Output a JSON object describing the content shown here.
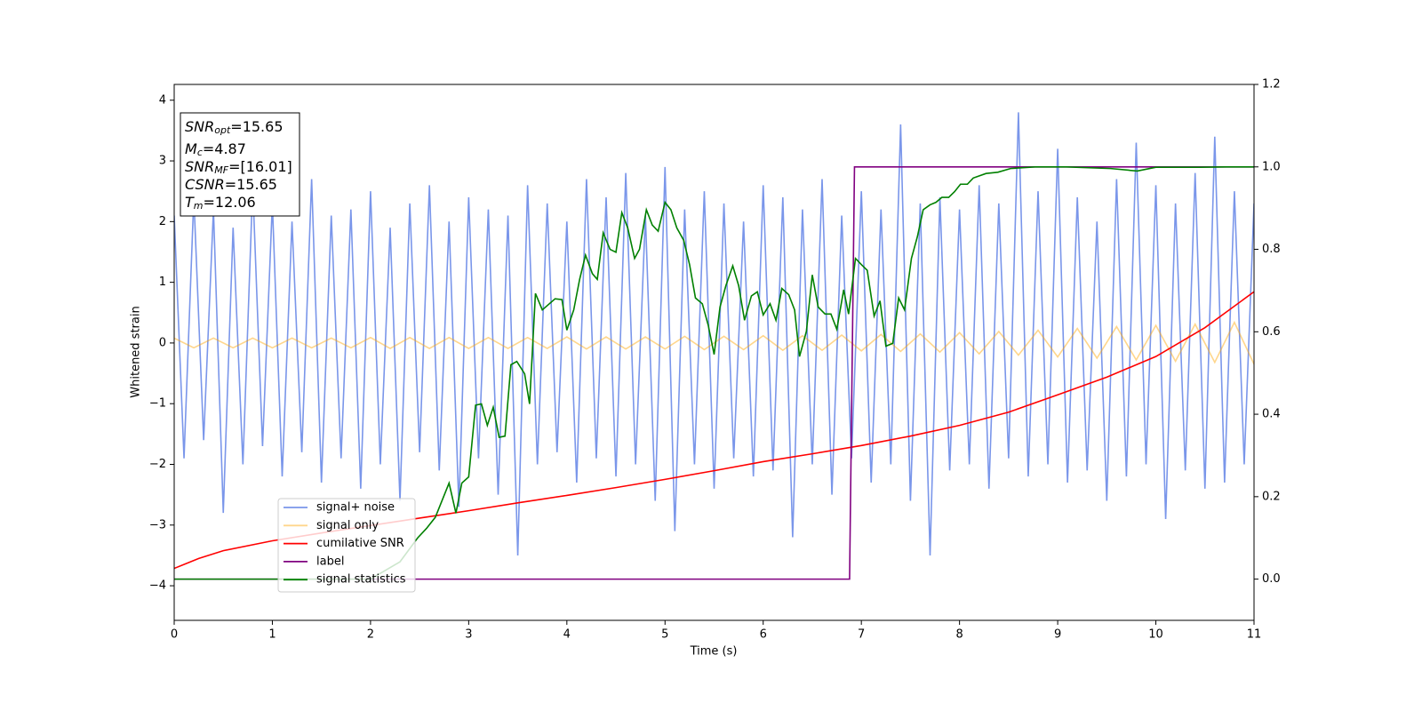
{
  "chart_data": {
    "type": "line",
    "xlabel": "Time (s)",
    "ylabel": "Whitened strain",
    "xlim": [
      0,
      11
    ],
    "ylim": [
      -4.57,
      4.26
    ],
    "y2lim": [
      -0.1,
      1.2
    ],
    "xticks": [
      0,
      1,
      2,
      3,
      4,
      5,
      6,
      7,
      8,
      9,
      10,
      11
    ],
    "yticks": [
      {
        "value": -4,
        "label": "−4"
      },
      {
        "value": -3,
        "label": "−3"
      },
      {
        "value": -2,
        "label": "−2"
      },
      {
        "value": -1,
        "label": "−1"
      },
      0,
      1,
      2,
      3,
      4
    ],
    "y2ticks": [
      {
        "value": 0,
        "label": "0.0"
      },
      0.2,
      0.4,
      0.6,
      0.8,
      {
        "value": 1,
        "label": "1.0"
      },
      1.2
    ],
    "legend": "lower left",
    "annotation_box": [
      {
        "text": "SNR",
        "sub": "opt",
        "rest": "=15.65"
      },
      {
        "text": "M",
        "sub": "c",
        "rest": "=4.87"
      },
      {
        "text": "SNR",
        "sub": "MF",
        "rest": "=[16.01]"
      },
      {
        "text": "CSNR",
        "rest": "=15.65"
      },
      {
        "text": "T",
        "sub": "m",
        "rest": "=12.06"
      }
    ],
    "series": [
      {
        "name": "signal+ noise",
        "color": "#4169e1",
        "opacity": 0.7,
        "axis": "y",
        "x": [
          0,
          0.1,
          0.2,
          0.3,
          0.4,
          0.5,
          0.6,
          0.7,
          0.8,
          0.9,
          1,
          1.1,
          1.2,
          1.3,
          1.4,
          1.5,
          1.6,
          1.7,
          1.8,
          1.9,
          2,
          2.1,
          2.2,
          2.3,
          2.4,
          2.5,
          2.6,
          2.7,
          2.8,
          2.9,
          3,
          3.1,
          3.2,
          3.3,
          3.4,
          3.5,
          3.6,
          3.7,
          3.8,
          3.9,
          4,
          4.1,
          4.2,
          4.3,
          4.4,
          4.5,
          4.6,
          4.7,
          4.8,
          4.9,
          5,
          5.1,
          5.2,
          5.3,
          5.4,
          5.5,
          5.6,
          5.7,
          5.8,
          5.9,
          6,
          6.1,
          6.2,
          6.3,
          6.4,
          6.5,
          6.6,
          6.7,
          6.8,
          6.9,
          7,
          7.1,
          7.2,
          7.3,
          7.4,
          7.5,
          7.6,
          7.7,
          7.8,
          7.9,
          8,
          8.1,
          8.2,
          8.3,
          8.4,
          8.5,
          8.6,
          8.7,
          8.8,
          8.9,
          9,
          9.1,
          9.2,
          9.3,
          9.4,
          9.5,
          9.6,
          9.7,
          9.8,
          9.9,
          10,
          10.1,
          10.2,
          10.3,
          10.4,
          10.5,
          10.6,
          10.7,
          10.8,
          10.9,
          11
        ],
        "values": [
          2.1,
          -1.9,
          2.4,
          -1.6,
          2.2,
          -2.8,
          1.9,
          -2.0,
          2.6,
          -1.7,
          2.3,
          -2.2,
          2.0,
          -1.8,
          2.7,
          -2.3,
          2.1,
          -1.9,
          2.2,
          -2.4,
          2.5,
          -2.0,
          1.9,
          -2.6,
          2.3,
          -1.8,
          2.6,
          -2.1,
          2.0,
          -2.7,
          2.4,
          -1.9,
          2.2,
          -2.5,
          2.1,
          -3.5,
          2.6,
          -2.0,
          2.3,
          -1.8,
          2.0,
          -2.3,
          2.7,
          -1.9,
          2.4,
          -2.2,
          2.8,
          -2.0,
          2.1,
          -2.6,
          2.9,
          -3.1,
          2.2,
          -2.0,
          2.5,
          -2.4,
          2.3,
          -1.9,
          2.0,
          -2.2,
          2.6,
          -2.1,
          2.4,
          -3.2,
          2.2,
          -2.0,
          2.7,
          -2.5,
          2.1,
          -1.9,
          2.5,
          -2.3,
          2.2,
          -2.0,
          3.6,
          -2.6,
          2.3,
          -3.5,
          2.4,
          -2.1,
          2.2,
          -2.0,
          2.6,
          -2.4,
          2.3,
          -1.9,
          3.8,
          -2.2,
          2.5,
          -2.0,
          3.2,
          -2.3,
          2.4,
          -2.1,
          2.0,
          -2.6,
          2.7,
          -2.2,
          3.3,
          -2.0,
          2.6,
          -2.9,
          2.3,
          -2.1,
          2.8,
          -2.4,
          3.4,
          -2.3,
          2.5,
          -2.0,
          2.3
        ]
      },
      {
        "name": "signal only",
        "color": "#ffa500",
        "opacity": 0.45,
        "axis": "y",
        "x": [
          0,
          0.2,
          0.4,
          0.6,
          0.8,
          1,
          1.2,
          1.4,
          1.6,
          1.8,
          2,
          2.2,
          2.4,
          2.6,
          2.8,
          3,
          3.2,
          3.4,
          3.6,
          3.8,
          4,
          4.2,
          4.4,
          4.6,
          4.8,
          5,
          5.2,
          5.4,
          5.6,
          5.8,
          6,
          6.2,
          6.4,
          6.6,
          6.8,
          7,
          7.2,
          7.4,
          7.6,
          7.8,
          8,
          8.2,
          8.4,
          8.6,
          8.8,
          9,
          9.2,
          9.4,
          9.6,
          9.8,
          10,
          10.2,
          10.4,
          10.6,
          10.8,
          11
        ],
        "values": [
          0.08,
          -0.08,
          0.08,
          -0.08,
          0.08,
          -0.08,
          0.08,
          -0.08,
          0.08,
          -0.08,
          0.09,
          -0.09,
          0.09,
          -0.09,
          0.09,
          -0.09,
          0.09,
          -0.09,
          0.09,
          -0.09,
          0.1,
          -0.1,
          0.1,
          -0.1,
          0.1,
          -0.1,
          0.11,
          -0.11,
          0.11,
          -0.11,
          0.12,
          -0.12,
          0.12,
          -0.12,
          0.13,
          -0.13,
          0.14,
          -0.14,
          0.15,
          -0.15,
          0.17,
          -0.18,
          0.19,
          -0.2,
          0.21,
          -0.23,
          0.24,
          -0.25,
          0.27,
          -0.28,
          0.29,
          -0.3,
          0.31,
          -0.32,
          0.34,
          -0.35
        ]
      },
      {
        "name": "cumilative SNR",
        "color": "#ff0000",
        "opacity": 1,
        "axis": "y2",
        "x": [
          0,
          0.25,
          0.5,
          1,
          1.5,
          2,
          2.5,
          3,
          3.5,
          4,
          4.5,
          5,
          5.5,
          6,
          6.5,
          7,
          7.5,
          8,
          8.5,
          9,
          9.5,
          10,
          10.5,
          11
        ],
        "values": [
          0.026,
          0.05,
          0.069,
          0.093,
          0.112,
          0.13,
          0.148,
          0.166,
          0.185,
          0.203,
          0.222,
          0.242,
          0.263,
          0.285,
          0.304,
          0.324,
          0.347,
          0.373,
          0.405,
          0.447,
          0.49,
          0.54,
          0.61,
          0.697
        ]
      },
      {
        "name": "label",
        "color": "#800080",
        "opacity": 1,
        "axis": "y2",
        "x": [
          0,
          6.88,
          6.93,
          11
        ],
        "values": [
          0,
          0,
          1,
          1
        ]
      },
      {
        "name": "signal statistics",
        "color": "#008000",
        "opacity": 1,
        "axis": "y2",
        "x": [
          0,
          2.0,
          2.3,
          2.48,
          2.57,
          2.66,
          2.8,
          2.87,
          2.93,
          3.0,
          3.07,
          3.13,
          3.19,
          3.25,
          3.31,
          3.37,
          3.43,
          3.49,
          3.57,
          3.62,
          3.68,
          3.75,
          3.88,
          3.95,
          4.0,
          4.07,
          4.13,
          4.19,
          4.26,
          4.31,
          4.37,
          4.44,
          4.5,
          4.56,
          4.62,
          4.69,
          4.74,
          4.81,
          4.87,
          4.93,
          5.0,
          5.06,
          5.12,
          5.19,
          5.25,
          5.31,
          5.38,
          5.44,
          5.5,
          5.56,
          5.62,
          5.69,
          5.75,
          5.81,
          5.88,
          5.94,
          6.0,
          6.07,
          6.13,
          6.19,
          6.26,
          6.32,
          6.37,
          6.44,
          6.5,
          6.56,
          6.63,
          6.69,
          6.75,
          6.82,
          6.87,
          6.94,
          7.0,
          7.06,
          7.13,
          7.19,
          7.25,
          7.32,
          7.38,
          7.44,
          7.51,
          7.57,
          7.63,
          7.7,
          7.76,
          7.82,
          7.89,
          7.95,
          8.01,
          8.08,
          8.14,
          8.27,
          8.39,
          8.52,
          8.77,
          9.09,
          9.54,
          9.81,
          10.0,
          10.45,
          10.72,
          11
        ],
        "values": [
          0,
          0,
          0.042,
          0.1,
          0.123,
          0.15,
          0.233,
          0.16,
          0.233,
          0.248,
          0.422,
          0.425,
          0.373,
          0.417,
          0.344,
          0.347,
          0.52,
          0.528,
          0.498,
          0.425,
          0.693,
          0.653,
          0.68,
          0.678,
          0.604,
          0.653,
          0.727,
          0.786,
          0.741,
          0.727,
          0.84,
          0.8,
          0.793,
          0.889,
          0.852,
          0.778,
          0.8,
          0.896,
          0.859,
          0.844,
          0.914,
          0.896,
          0.852,
          0.822,
          0.763,
          0.682,
          0.668,
          0.616,
          0.545,
          0.66,
          0.712,
          0.76,
          0.712,
          0.628,
          0.687,
          0.697,
          0.641,
          0.668,
          0.628,
          0.705,
          0.69,
          0.653,
          0.54,
          0.601,
          0.738,
          0.66,
          0.643,
          0.643,
          0.606,
          0.702,
          0.643,
          0.778,
          0.763,
          0.749,
          0.638,
          0.675,
          0.565,
          0.572,
          0.682,
          0.653,
          0.778,
          0.83,
          0.896,
          0.908,
          0.914,
          0.926,
          0.926,
          0.94,
          0.958,
          0.958,
          0.973,
          0.984,
          0.987,
          0.996,
          1.0,
          1.0,
          0.996,
          0.99,
          0.999,
          0.999,
          1.0,
          1.0
        ]
      }
    ]
  }
}
